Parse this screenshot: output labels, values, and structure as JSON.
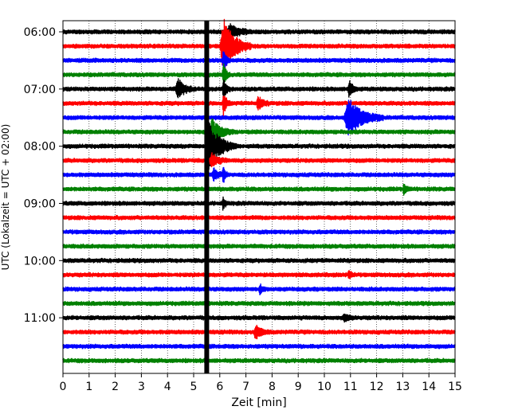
{
  "chart_data": {
    "type": "line",
    "title": "",
    "xlabel": "Zeit  [min]",
    "ylabel": "UTC (Lokalzeit = UTC + 02:00)",
    "xlim": [
      0,
      15
    ],
    "x_ticks": [
      0,
      1,
      2,
      3,
      4,
      5,
      6,
      7,
      8,
      9,
      10,
      11,
      12,
      13,
      14,
      15
    ],
    "y_tick_labels": [
      "06:00",
      "07:00",
      "08:00",
      "09:00",
      "10:00",
      "11:00"
    ],
    "y_tick_times_min": [
      360,
      420,
      480,
      540,
      600,
      660
    ],
    "grid": "vertical dotted lines at each minute",
    "trace_interval_min": 15,
    "trace_start_times_min": [
      360,
      375,
      390,
      405,
      420,
      435,
      450,
      465,
      480,
      495,
      510,
      525,
      540,
      555,
      570,
      585,
      600,
      615,
      630,
      645,
      660,
      675,
      690,
      705
    ],
    "trace_colors_cycle": [
      "#000000",
      "#ff0000",
      "#0000ff",
      "#008000"
    ],
    "background_amplitude": 0.16,
    "events": [
      {
        "trace": 0,
        "t": 6.25,
        "dur": 1.0,
        "amp": 0.5
      },
      {
        "trace": 1,
        "t": 6.0,
        "dur": 1.2,
        "amp": 1.9
      },
      {
        "trace": 2,
        "t": 6.1,
        "dur": 0.3,
        "amp": 0.9
      },
      {
        "trace": 3,
        "t": 6.1,
        "dur": 0.3,
        "amp": 0.9
      },
      {
        "trace": 4,
        "t": 4.3,
        "dur": 0.75,
        "amp": 0.7
      },
      {
        "trace": 4,
        "t": 6.1,
        "dur": 0.3,
        "amp": 0.8
      },
      {
        "trace": 4,
        "t": 10.9,
        "dur": 0.35,
        "amp": 0.65
      },
      {
        "trace": 5,
        "t": 6.1,
        "dur": 0.3,
        "amp": 0.8
      },
      {
        "trace": 5,
        "t": 7.4,
        "dur": 0.5,
        "amp": 0.45
      },
      {
        "trace": 6,
        "t": 10.75,
        "dur": 1.5,
        "amp": 1.3
      },
      {
        "trace": 7,
        "t": 5.6,
        "dur": 0.9,
        "amp": 0.9
      },
      {
        "trace": 8,
        "t": 5.45,
        "dur": 1.2,
        "amp": 1.6
      },
      {
        "trace": 9,
        "t": 5.6,
        "dur": 0.7,
        "amp": 0.45
      },
      {
        "trace": 10,
        "t": 5.7,
        "dur": 0.5,
        "amp": 0.4
      },
      {
        "trace": 10,
        "t": 6.1,
        "dur": 0.2,
        "amp": 0.6
      },
      {
        "trace": 11,
        "t": 13.0,
        "dur": 0.3,
        "amp": 0.35
      },
      {
        "trace": 12,
        "t": 6.1,
        "dur": 0.2,
        "amp": 0.5
      },
      {
        "trace": 17,
        "t": 10.9,
        "dur": 0.3,
        "amp": 0.3
      },
      {
        "trace": 18,
        "t": 7.5,
        "dur": 0.3,
        "amp": 0.35
      },
      {
        "trace": 20,
        "t": 10.7,
        "dur": 0.5,
        "amp": 0.25
      },
      {
        "trace": 21,
        "t": 7.3,
        "dur": 0.6,
        "amp": 0.45
      }
    ],
    "marker": {
      "x": 5.5,
      "color": "#000000",
      "description": "thick black vertical band across all traces"
    }
  }
}
